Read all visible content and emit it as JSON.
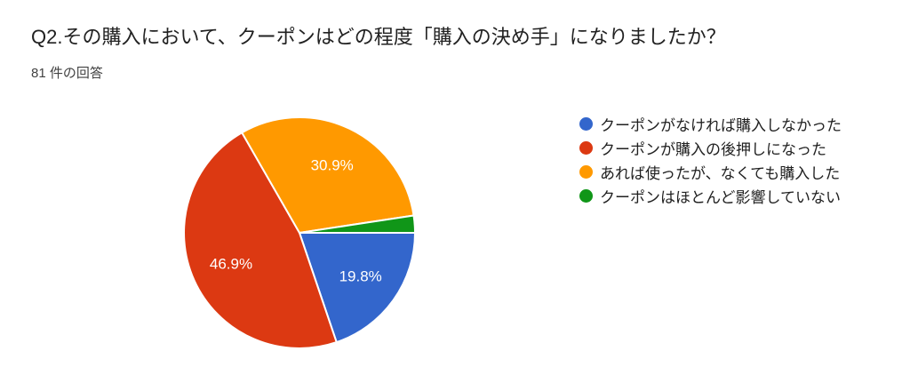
{
  "page": {
    "title": "Q2.その購入において、クーポンはどの程度「購入の決め手」になりましたか？",
    "response_count": "81 件の回答"
  },
  "chart_data": {
    "type": "pie",
    "title": "Q2.その購入において、クーポンはどの程度「購入の決め手」になりましたか？",
    "subtitle": "81 件の回答",
    "legend_position": "right",
    "start_angle_deg": 0,
    "direction": "clockwise",
    "slices": [
      {
        "label": "クーポンがなければ購入しなかった",
        "percent": 19.8,
        "pct_label": "19.8%",
        "color": "#3366CC"
      },
      {
        "label": "クーポンが購入の後押しになった",
        "percent": 46.9,
        "pct_label": "46.9%",
        "color": "#DC3912"
      },
      {
        "label": "あれば使ったが、なくても購入した",
        "percent": 30.9,
        "pct_label": "30.9%",
        "color": "#FF9900"
      },
      {
        "label": "クーポンはほとんど影響していない",
        "percent": 2.4,
        "pct_label": "",
        "color": "#109618"
      }
    ]
  }
}
